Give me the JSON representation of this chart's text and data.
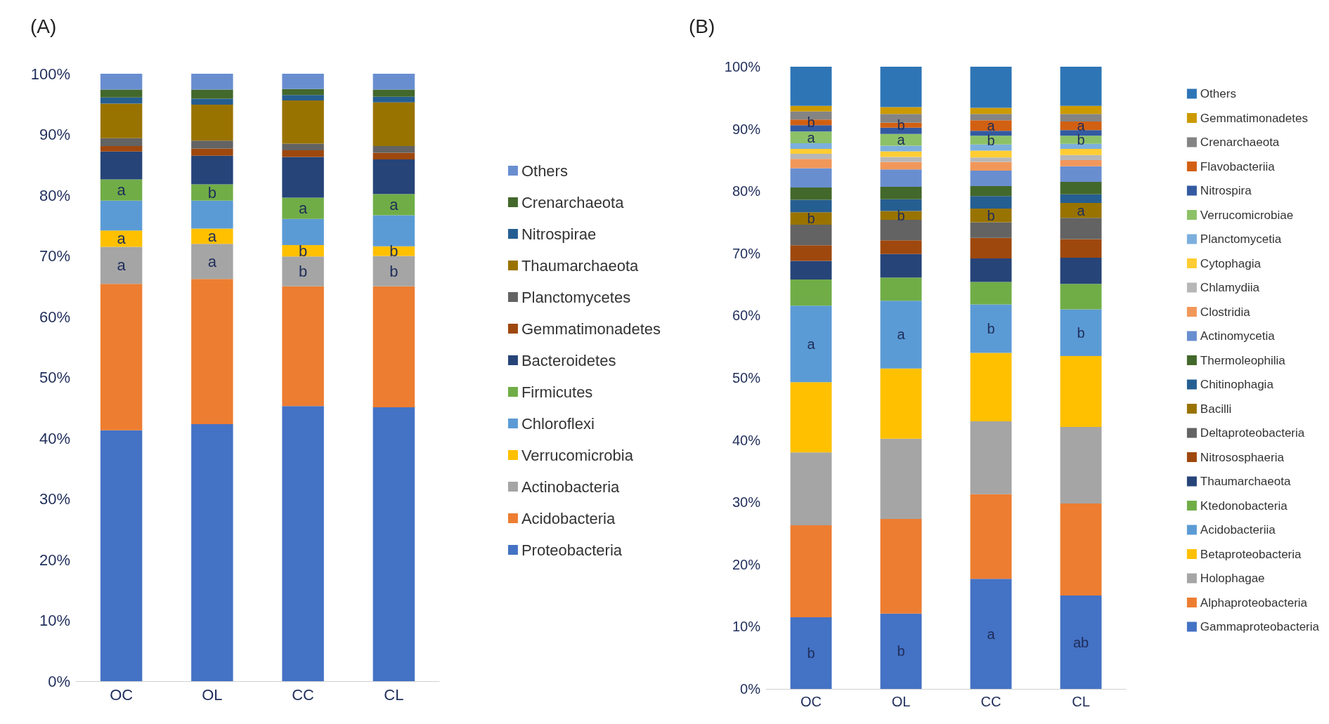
{
  "chart_data": [
    {
      "type": "bar",
      "title": "(A)",
      "stacked": true,
      "legend": "right",
      "categories": [
        "OC",
        "OL",
        "CC",
        "CL"
      ],
      "ylim": [
        0,
        100
      ],
      "yticks": [
        {
          "value": 0,
          "label": "0%"
        },
        {
          "value": 10,
          "label": "10%"
        },
        {
          "value": 20,
          "label": "20%"
        },
        {
          "value": 30,
          "label": "30%"
        },
        {
          "value": 40,
          "label": "40%"
        },
        {
          "value": 50,
          "label": "50%"
        },
        {
          "value": 60,
          "label": "60%"
        },
        {
          "value": 70,
          "label": "70%"
        },
        {
          "value": 80,
          "label": "80%"
        },
        {
          "value": 90,
          "label": "90%"
        },
        {
          "value": 100,
          "label": "100%"
        }
      ],
      "series": [
        {
          "name": "Proteobacteria",
          "color": "#4472c4",
          "values": [
            41.3,
            42.3,
            45.3,
            45.1
          ]
        },
        {
          "name": "Acidobacteria",
          "color": "#ed7d31",
          "values": [
            24.1,
            23.9,
            19.7,
            19.9
          ]
        },
        {
          "name": "Actinobacteria",
          "color": "#a5a5a5",
          "values": [
            6.1,
            5.8,
            4.9,
            5.0
          ],
          "value_labels": [
            "a",
            "a",
            "b",
            "b"
          ]
        },
        {
          "name": "Verrucomicrobia",
          "color": "#ffc000",
          "values": [
            2.7,
            2.5,
            1.9,
            1.6
          ],
          "value_labels": [
            "a",
            "a",
            "b",
            "b"
          ]
        },
        {
          "name": "Chloroflexi",
          "color": "#5b9bd5",
          "values": [
            4.9,
            4.6,
            4.3,
            5.1
          ]
        },
        {
          "name": "Firmicutes",
          "color": "#70ad47",
          "values": [
            3.5,
            2.7,
            3.5,
            3.5
          ],
          "value_labels": [
            "a",
            "b",
            "a",
            "a"
          ]
        },
        {
          "name": "Bacteroidetes",
          "color": "#264478",
          "values": [
            4.6,
            4.7,
            6.7,
            5.7
          ]
        },
        {
          "name": "Gemmatimonadetes",
          "color": "#9e480e",
          "values": [
            0.9,
            1.2,
            1.1,
            1.1
          ]
        },
        {
          "name": "Planctomycetes",
          "color": "#636363",
          "values": [
            1.3,
            1.3,
            1.1,
            1.1
          ]
        },
        {
          "name": "Thaumarchaeota",
          "color": "#997300",
          "values": [
            5.7,
            5.9,
            7.1,
            7.2
          ]
        },
        {
          "name": "Nitrospirae",
          "color": "#255e91",
          "values": [
            1.0,
            1.0,
            0.9,
            0.9
          ]
        },
        {
          "name": "Crenarchaeota",
          "color": "#43682b",
          "values": [
            1.3,
            1.5,
            1.0,
            1.2
          ]
        },
        {
          "name": "Others",
          "color": "#698ed0",
          "values": [
            2.6,
            2.6,
            2.5,
            2.6
          ]
        }
      ]
    },
    {
      "type": "bar",
      "title": "(B)",
      "stacked": true,
      "legend": "right",
      "categories": [
        "OC",
        "OL",
        "CC",
        "CL"
      ],
      "ylim": [
        0,
        100
      ],
      "yticks": [
        {
          "value": 0,
          "label": "0%"
        },
        {
          "value": 10,
          "label": "10%"
        },
        {
          "value": 20,
          "label": "20%"
        },
        {
          "value": 30,
          "label": "30%"
        },
        {
          "value": 40,
          "label": "40%"
        },
        {
          "value": 50,
          "label": "50%"
        },
        {
          "value": 60,
          "label": "60%"
        },
        {
          "value": 70,
          "label": "70%"
        },
        {
          "value": 80,
          "label": "80%"
        },
        {
          "value": 90,
          "label": "90%"
        },
        {
          "value": 100,
          "label": "100%"
        }
      ],
      "series": [
        {
          "name": "Gammaproteobacteria",
          "color": "#4472c4",
          "values": [
            11.5,
            12.1,
            17.7,
            15.0
          ],
          "value_labels": [
            "b",
            "b",
            "a",
            "ab"
          ]
        },
        {
          "name": "Alphaproteobacteria",
          "color": "#ed7d31",
          "values": [
            14.8,
            15.2,
            13.6,
            14.8
          ]
        },
        {
          "name": "Holophagae",
          "color": "#a5a5a5",
          "values": [
            11.7,
            12.9,
            11.7,
            12.3
          ]
        },
        {
          "name": "Betaproteobacteria",
          "color": "#ffc000",
          "values": [
            11.3,
            11.3,
            11.0,
            11.4
          ]
        },
        {
          "name": "Acidobacteriia",
          "color": "#5b9bd5",
          "values": [
            12.3,
            10.9,
            7.8,
            7.5
          ],
          "value_labels": [
            "a",
            "a",
            "b",
            "b"
          ]
        },
        {
          "name": "Ktedonobacteria",
          "color": "#70ad47",
          "values": [
            4.2,
            3.7,
            3.6,
            4.1
          ]
        },
        {
          "name": "Thaumarchaeota",
          "color": "#264478",
          "values": [
            3.0,
            3.8,
            3.8,
            4.2
          ]
        },
        {
          "name": "Nitrososphaeria",
          "color": "#9e480e",
          "values": [
            2.5,
            2.2,
            3.3,
            3.0
          ]
        },
        {
          "name": "Deltaproteobacteria",
          "color": "#636363",
          "values": [
            3.3,
            3.3,
            2.5,
            3.4
          ]
        },
        {
          "name": "Bacilli",
          "color": "#997300",
          "values": [
            2.0,
            1.4,
            2.2,
            2.4
          ],
          "value_labels": [
            "b",
            "b",
            "b",
            "a"
          ]
        },
        {
          "name": "Chitinophagia",
          "color": "#255e91",
          "values": [
            2.0,
            1.9,
            2.0,
            1.4
          ]
        },
        {
          "name": "Thermoleophilia",
          "color": "#43682b",
          "values": [
            2.0,
            2.0,
            1.6,
            2.0
          ]
        },
        {
          "name": "Actinomycetia",
          "color": "#698ed0",
          "values": [
            3.1,
            2.8,
            2.5,
            2.5
          ]
        },
        {
          "name": "Clostridia",
          "color": "#f1975a",
          "values": [
            1.5,
            1.2,
            1.4,
            1.0
          ]
        },
        {
          "name": "Chlamydiia",
          "color": "#b7b7b7",
          "values": [
            0.8,
            0.8,
            0.7,
            0.8
          ]
        },
        {
          "name": "Cytophagia",
          "color": "#ffcd33",
          "values": [
            0.8,
            0.9,
            1.1,
            1.0
          ]
        },
        {
          "name": "Planctomycetia",
          "color": "#7cafdd",
          "values": [
            0.9,
            0.9,
            1.0,
            0.8
          ]
        },
        {
          "name": "Verrucomicrobiae",
          "color": "#8cc168",
          "values": [
            1.9,
            1.9,
            1.4,
            1.3
          ],
          "value_labels": [
            "a",
            "a",
            "b",
            "b"
          ]
        },
        {
          "name": "Nitrospira",
          "color": "#335aa1",
          "values": [
            1.0,
            1.0,
            0.8,
            0.9
          ]
        },
        {
          "name": "Flavobacteriia",
          "color": "#d26012",
          "values": [
            0.9,
            0.8,
            1.7,
            1.4
          ],
          "value_labels": [
            "b",
            "b",
            "a",
            "a"
          ]
        },
        {
          "name": "Crenarchaeota",
          "color": "#848484",
          "values": [
            1.3,
            1.4,
            1.0,
            1.2
          ]
        },
        {
          "name": "Gemmatimonadetes",
          "color": "#cc9a00",
          "values": [
            0.9,
            1.1,
            1.0,
            1.3
          ]
        },
        {
          "name": "Others",
          "color": "#2e75b6",
          "values": [
            6.3,
            6.5,
            6.6,
            6.3
          ]
        }
      ]
    }
  ]
}
